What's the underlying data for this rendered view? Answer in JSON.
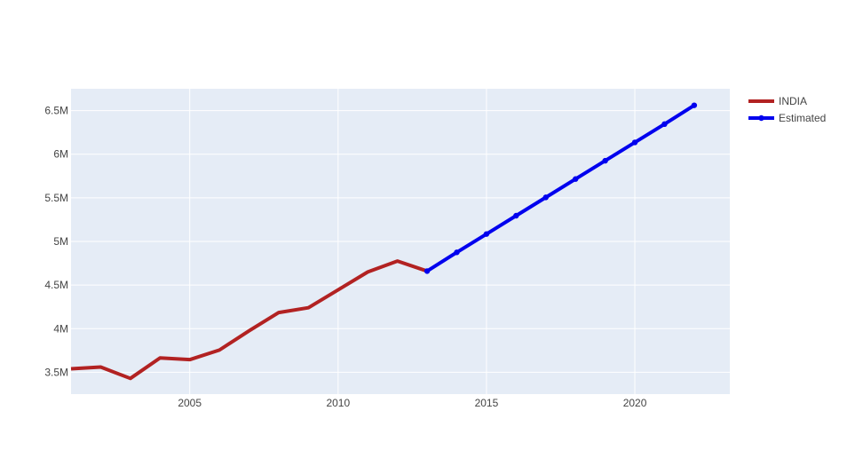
{
  "chart_data": {
    "type": "line",
    "title": "",
    "xlabel": "",
    "ylabel": "",
    "xlim": [
      2001,
      2023.2
    ],
    "ylim": [
      3250000,
      6750000
    ],
    "x_ticks": [
      2005,
      2010,
      2015,
      2020
    ],
    "x_tick_labels": [
      "2005",
      "2010",
      "2015",
      "2020"
    ],
    "y_ticks": [
      3500000,
      4000000,
      4500000,
      5000000,
      5500000,
      6000000,
      6500000
    ],
    "y_tick_labels": [
      "3.5M",
      "4M",
      "4.5M",
      "5M",
      "5.5M",
      "6M",
      "6.5M"
    ],
    "grid": true,
    "legend_position": "top-right",
    "series": [
      {
        "name": "INDIA",
        "color": "#b22222",
        "mode": "lines",
        "x": [
          2001,
          2002,
          2003,
          2004,
          2005,
          2006,
          2007,
          2008,
          2009,
          2010,
          2011,
          2012,
          2013
        ],
        "y": [
          3540000,
          3560000,
          3430000,
          3665000,
          3645000,
          3755000,
          3975000,
          4185000,
          4240000,
          4445000,
          4650000,
          4775000,
          4660000
        ]
      },
      {
        "name": "Estimated",
        "color": "#0000ee",
        "mode": "lines+markers",
        "x": [
          2013,
          2014,
          2015,
          2016,
          2017,
          2018,
          2019,
          2020,
          2021,
          2022
        ],
        "y": [
          4660000,
          4875000,
          5085000,
          5295000,
          5505000,
          5715000,
          5925000,
          6135000,
          6345000,
          6560000
        ]
      }
    ]
  }
}
